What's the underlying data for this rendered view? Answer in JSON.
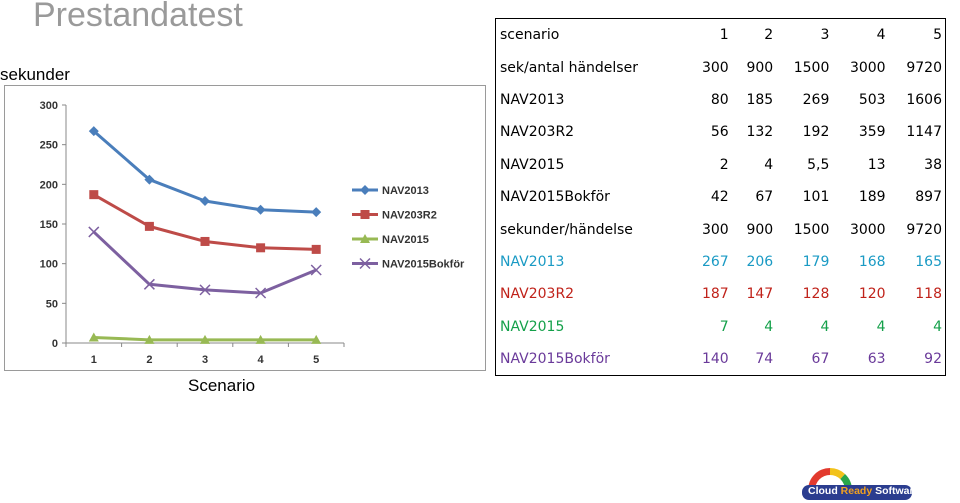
{
  "title": "Prestandatest",
  "chart_data": {
    "type": "line",
    "title": "",
    "xlabel": "Scenario",
    "ylabel": "sekunder",
    "categories": [
      "1",
      "2",
      "3",
      "4",
      "5"
    ],
    "ylim": [
      0,
      300
    ],
    "yticks": [
      "0",
      "50",
      "100",
      "150",
      "200",
      "250",
      "300"
    ],
    "grid": false,
    "legend": "right",
    "series": [
      {
        "name": "NAV2013",
        "values": [
          267,
          206,
          179,
          168,
          165
        ],
        "color": "#4a7ebb",
        "marker": "diamond"
      },
      {
        "name": "NAV203R2",
        "values": [
          187,
          147,
          128,
          120,
          118
        ],
        "color": "#be4b48",
        "marker": "square"
      },
      {
        "name": "NAV2015",
        "values": [
          7,
          4,
          4,
          4,
          4
        ],
        "color": "#98b954",
        "marker": "triangle"
      },
      {
        "name": "NAV2015Bokför",
        "values": [
          140,
          74,
          67,
          63,
          92
        ],
        "color": "#7d60a0",
        "marker": "x"
      }
    ]
  },
  "table": {
    "rows": [
      {
        "label": "scenario",
        "values": [
          "1",
          "2",
          "3",
          "4",
          "5"
        ],
        "color": "#000000",
        "bold": false
      },
      {
        "label": "sek/antal händelser",
        "values": [
          "300",
          "900",
          "1500",
          "3000",
          "9720"
        ],
        "color": "#000000",
        "bold": false
      },
      {
        "label": "NAV2013",
        "values": [
          "80",
          "185",
          "269",
          "503",
          "1606"
        ],
        "color": "#000000",
        "bold": false
      },
      {
        "label": "NAV203R2",
        "values": [
          "56",
          "132",
          "192",
          "359",
          "1147"
        ],
        "color": "#000000",
        "bold": false
      },
      {
        "label": "NAV2015",
        "values": [
          "2",
          "4",
          "5,5",
          "13",
          "38"
        ],
        "color": "#000000",
        "bold": false
      },
      {
        "label": "NAV2015Bokför",
        "values": [
          "42",
          "67",
          "101",
          "189",
          "897"
        ],
        "color": "#000000",
        "bold": false
      },
      {
        "label": "sekunder/händelse",
        "values": [
          "300",
          "900",
          "1500",
          "3000",
          "9720"
        ],
        "color": "#000000",
        "bold": false
      },
      {
        "label": "NAV2013",
        "values": [
          "267",
          "206",
          "179",
          "168",
          "165"
        ],
        "color": "#1a9ac4",
        "bold": false
      },
      {
        "label": "NAV203R2",
        "values": [
          "187",
          "147",
          "128",
          "120",
          "118"
        ],
        "color": "#c0221a",
        "bold": false
      },
      {
        "label": "NAV2015",
        "values": [
          "7",
          "4",
          "4",
          "4",
          "4"
        ],
        "color": "#14a04a",
        "bold": false
      },
      {
        "label": "NAV2015Bokför",
        "values": [
          "140",
          "74",
          "67",
          "63",
          "92"
        ],
        "color": "#6a3a9a",
        "bold": false
      }
    ]
  },
  "logo": {
    "text_cloud": "Cloud",
    "text_ready": "Ready",
    "text_software": "Software",
    "color_cloud": "#2b3d8f",
    "color_ready": "#f0a020",
    "color_software": "#2b3d8f"
  }
}
